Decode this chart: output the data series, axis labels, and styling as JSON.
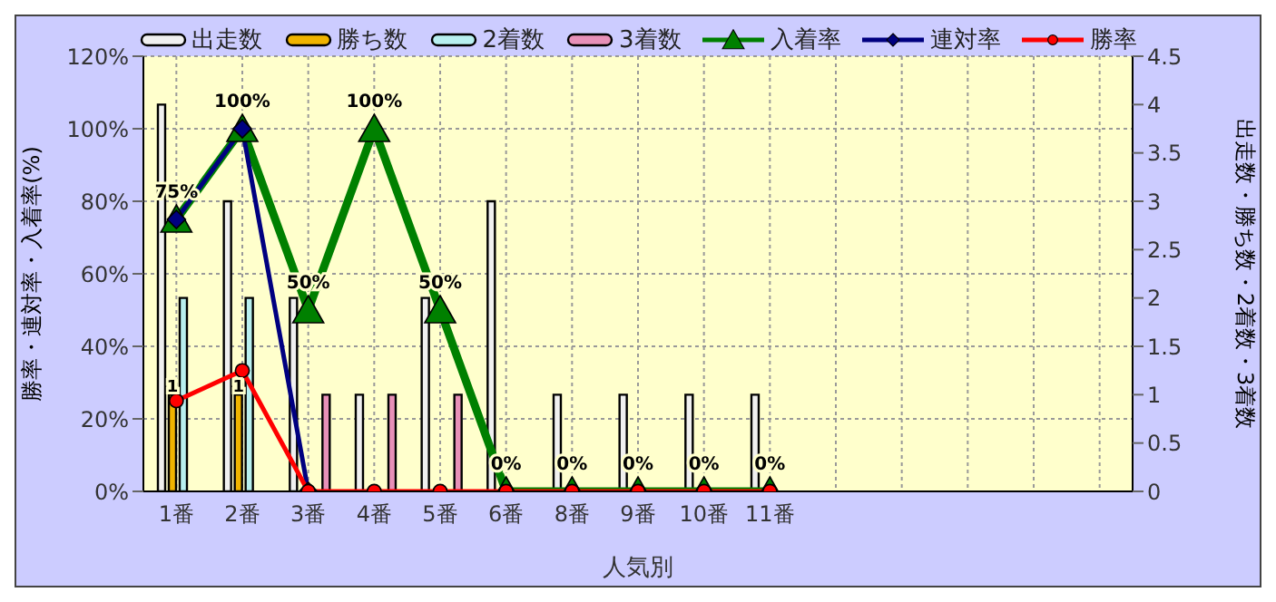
{
  "chart_data": {
    "type": "bar",
    "xlabel": "人気別",
    "ylabel": "勝率・連対率・入着率(%)",
    "y2label": "出走数・勝ち数・2着数・3着数",
    "categories": [
      "1番",
      "2番",
      "3番",
      "4番",
      "5番",
      "6番",
      "8番",
      "9番",
      "10番",
      "11番",
      null,
      null,
      null,
      null,
      null
    ],
    "series": [
      {
        "name": "出走数",
        "axis": "y2",
        "color": "#f0f0f0",
        "values": [
          4,
          3,
          2,
          1,
          2,
          3,
          1,
          1,
          1,
          1,
          null,
          null,
          null,
          null,
          null
        ]
      },
      {
        "name": "勝ち数",
        "axis": "y2",
        "color": "#f0b400",
        "values": [
          1,
          1,
          0,
          0,
          0,
          0,
          0,
          0,
          0,
          0,
          null,
          null,
          null,
          null,
          null
        ],
        "value_labels": [
          "1",
          "1",
          null,
          null,
          null,
          null,
          null,
          null,
          null,
          null,
          null,
          null,
          null,
          null,
          null
        ]
      },
      {
        "name": "2着数",
        "axis": "y2",
        "color": "#b8f0f0",
        "values": [
          2,
          2,
          0,
          0,
          0,
          0,
          0,
          0,
          0,
          0,
          null,
          null,
          null,
          null,
          null
        ]
      },
      {
        "name": "3着数",
        "axis": "y2",
        "color": "#e890b8",
        "values": [
          0,
          0,
          1,
          1,
          1,
          0,
          0,
          0,
          0,
          0,
          null,
          null,
          null,
          null,
          null
        ]
      },
      {
        "name": "入着率",
        "type": "line",
        "axis": "y",
        "color": "#008000",
        "marker": "triangle",
        "values": [
          75,
          100,
          50,
          100,
          50,
          0,
          0,
          0,
          0,
          0,
          null,
          null,
          null,
          null,
          null
        ],
        "value_labels": [
          "75%",
          "100%",
          "50%",
          "100%",
          "50%",
          "0%",
          "0%",
          "0%",
          "0%",
          "0%",
          null,
          null,
          null,
          null,
          null
        ]
      },
      {
        "name": "連対率",
        "type": "line",
        "axis": "y",
        "color": "#000080",
        "marker": "diamond",
        "values": [
          75,
          100,
          0,
          null,
          null,
          null,
          null,
          null,
          null,
          null,
          null,
          null,
          null,
          null,
          null
        ]
      },
      {
        "name": "勝率",
        "type": "line",
        "axis": "y",
        "color": "#ff0000",
        "marker": "circle",
        "values": [
          25,
          33.3,
          0,
          0,
          0,
          0,
          0,
          0,
          0,
          0,
          null,
          null,
          null,
          null,
          null
        ]
      }
    ],
    "ylim": [
      0,
      120
    ],
    "yticks": [
      {
        "value": 0,
        "label": "0%"
      },
      {
        "value": 20,
        "label": "20%"
      },
      {
        "value": 40,
        "label": "40%"
      },
      {
        "value": 60,
        "label": "60%"
      },
      {
        "value": 80,
        "label": "80%"
      },
      {
        "value": 100,
        "label": "100%"
      },
      {
        "value": 120,
        "label": "120%"
      }
    ],
    "y2lim": [
      0,
      4.5
    ],
    "y2ticks": [
      0,
      0.5,
      1,
      1.5,
      2,
      2.5,
      3,
      3.5,
      4,
      4.5
    ],
    "grid": true,
    "legend": "top"
  }
}
